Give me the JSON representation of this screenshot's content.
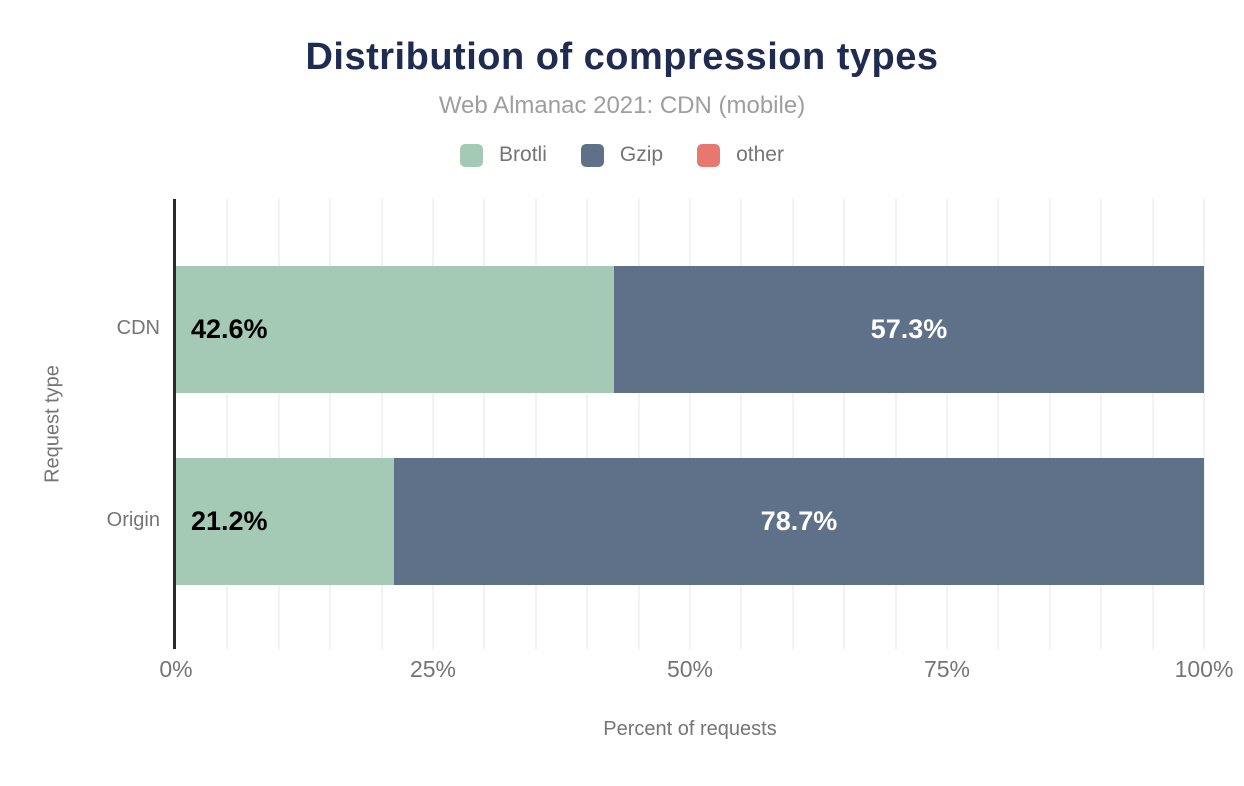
{
  "header": {
    "title": "Distribution of compression types",
    "subtitle": "Web Almanac 2021: CDN (mobile)"
  },
  "legend": [
    {
      "label": "Brotli",
      "color": "#a4c9b5"
    },
    {
      "label": "Gzip",
      "color": "#5f7189"
    },
    {
      "label": "other",
      "color": "#e8786f"
    }
  ],
  "chart_data": {
    "type": "bar",
    "orientation": "horizontal",
    "stacked": true,
    "title": "Distribution of compression types",
    "subtitle": "Web Almanac 2021: CDN (mobile)",
    "categories": [
      "CDN",
      "Origin"
    ],
    "series": [
      {
        "name": "Brotli",
        "color": "#a4c9b5",
        "values": [
          42.6,
          21.2
        ],
        "labels": [
          "42.6%",
          "21.2%"
        ]
      },
      {
        "name": "Gzip",
        "color": "#5f7189",
        "values": [
          57.3,
          78.7
        ],
        "labels": [
          "57.3%",
          "78.7%"
        ]
      },
      {
        "name": "other",
        "color": "#e8786f",
        "values": [
          0.1,
          0.1
        ],
        "labels": [
          "",
          ""
        ]
      }
    ],
    "xlabel": "Percent of requests",
    "ylabel": "Request type",
    "xlim": [
      0,
      100
    ],
    "xticks": [
      {
        "label": "0%",
        "pct": 0
      },
      {
        "label": "25%",
        "pct": 25
      },
      {
        "label": "50%",
        "pct": 50
      },
      {
        "label": "75%",
        "pct": 75
      },
      {
        "label": "100%",
        "pct": 100
      }
    ],
    "grid": {
      "vertical": true,
      "interval_pct": 5,
      "color": "#f2f2f2"
    },
    "legend_position": "top"
  },
  "colors": {
    "title_text": "#1f2b50",
    "subtitle_text": "#9e9e9e",
    "axis_text": "#757575",
    "axis_line": "#2b2b2b",
    "gridline": "#f2f2f2",
    "bar_label_dark": "#000000",
    "bar_label_light": "#ffffff",
    "background": "#ffffff"
  }
}
